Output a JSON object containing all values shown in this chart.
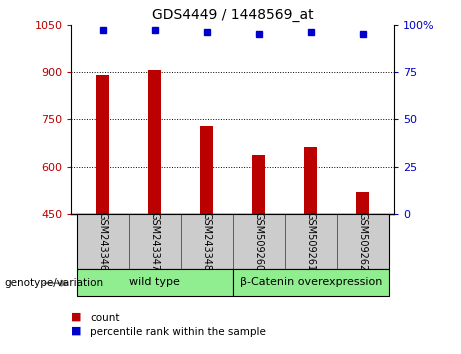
{
  "title": "GDS4449 / 1448569_at",
  "samples": [
    "GSM243346",
    "GSM243347",
    "GSM243348",
    "GSM509260",
    "GSM509261",
    "GSM509262"
  ],
  "bar_values": [
    890,
    906,
    730,
    638,
    662,
    520
  ],
  "percentile_values": [
    97,
    97,
    96,
    95,
    96,
    95
  ],
  "bar_color": "#bb0000",
  "dot_color": "#0000cc",
  "ymin": 450,
  "ymax": 1050,
  "yticks": [
    450,
    600,
    750,
    900,
    1050
  ],
  "ytick_labels": [
    "450",
    "600",
    "750",
    "900",
    "1050"
  ],
  "y2min": 0,
  "y2max": 100,
  "y2ticks": [
    0,
    25,
    50,
    75,
    100
  ],
  "y2tick_labels": [
    "0",
    "25",
    "50",
    "75",
    "100%"
  ],
  "groups": [
    {
      "label": "wild type",
      "start": 0,
      "end": 3
    },
    {
      "label": "β-Catenin overexpression",
      "start": 3,
      "end": 6
    }
  ],
  "group_row_label": "genotype/variation",
  "legend_items": [
    {
      "color": "#bb0000",
      "label": "count"
    },
    {
      "color": "#0000cc",
      "label": "percentile rank within the sample"
    }
  ],
  "bar_width": 0.25,
  "tick_label_area_color": "#cccccc",
  "group_area_color": "#90ee90"
}
